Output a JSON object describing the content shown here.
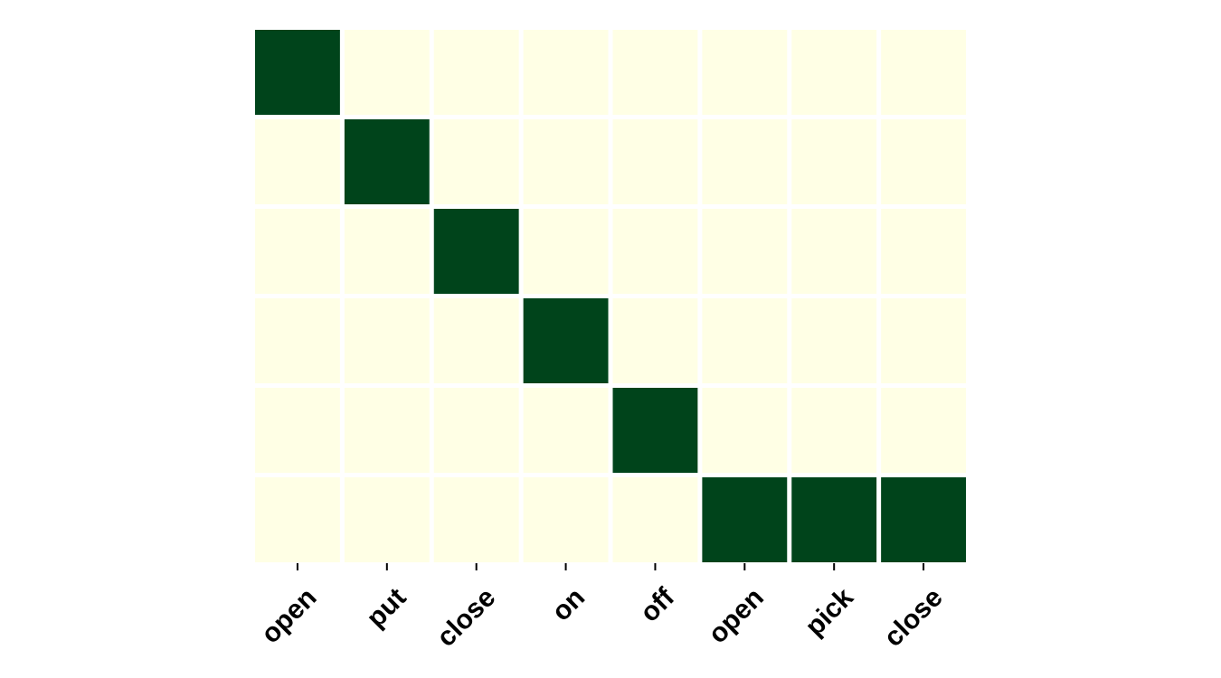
{
  "chart_data": {
    "type": "heatmap",
    "title": "",
    "xlabel": "",
    "ylabel": "",
    "x_categories": [
      "open",
      "put",
      "close",
      "on",
      "off",
      "open",
      "pick",
      "close"
    ],
    "y_categories": [],
    "rows": 6,
    "values": [
      [
        1,
        0,
        0,
        0,
        0,
        0,
        0,
        0
      ],
      [
        0,
        1,
        0,
        0,
        0,
        0,
        0,
        0
      ],
      [
        0,
        0,
        1,
        0,
        0,
        0,
        0,
        0
      ],
      [
        0,
        0,
        0,
        1,
        0,
        0,
        0,
        0
      ],
      [
        0,
        0,
        0,
        0,
        1,
        0,
        0,
        0
      ],
      [
        0,
        0,
        0,
        0,
        0,
        1,
        1,
        1
      ]
    ],
    "value_range": [
      0,
      1
    ],
    "colorscale": {
      "low": "#ffffe5",
      "high": "#00441b"
    },
    "grid_color": "#ffffff",
    "colorbar": false,
    "legend": "none"
  }
}
